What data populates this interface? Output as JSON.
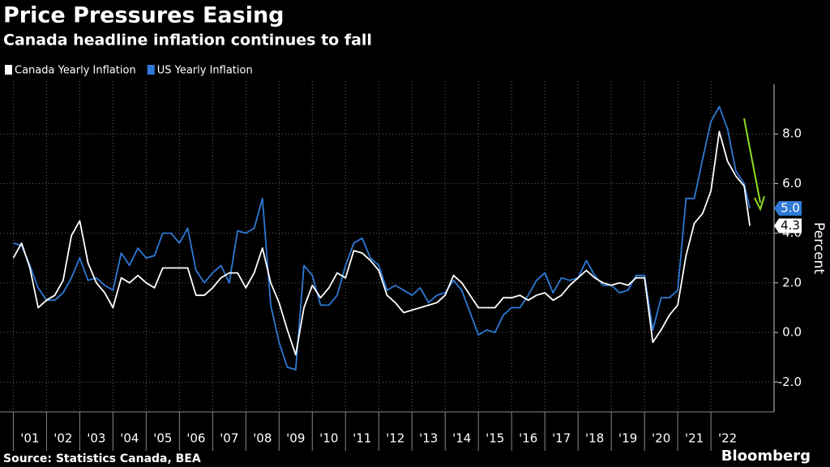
{
  "chart_data": {
    "type": "line",
    "title": "Price Pressures Easing",
    "subtitle": "Canada headline inflation continues to fall",
    "y_label": "Percent",
    "source": "Source: Statistics Canada, BEA",
    "brand": "Bloomberg",
    "x": [
      2001,
      2001.25,
      2001.5,
      2001.75,
      2002,
      2002.25,
      2002.5,
      2002.75,
      2003,
      2003.25,
      2003.5,
      2003.75,
      2004,
      2004.25,
      2004.5,
      2004.75,
      2005,
      2005.25,
      2005.5,
      2005.75,
      2006,
      2006.25,
      2006.5,
      2006.75,
      2007,
      2007.25,
      2007.5,
      2007.75,
      2008,
      2008.25,
      2008.5,
      2008.75,
      2009,
      2009.25,
      2009.5,
      2009.75,
      2010,
      2010.25,
      2010.5,
      2010.75,
      2011,
      2011.25,
      2011.5,
      2011.75,
      2012,
      2012.25,
      2012.5,
      2012.75,
      2013,
      2013.25,
      2013.5,
      2013.75,
      2014,
      2014.25,
      2014.5,
      2014.75,
      2015,
      2015.25,
      2015.5,
      2015.75,
      2016,
      2016.25,
      2016.5,
      2016.75,
      2017,
      2017.25,
      2017.5,
      2017.75,
      2018,
      2018.25,
      2018.5,
      2018.75,
      2019,
      2019.25,
      2019.5,
      2019.75,
      2020,
      2020.25,
      2020.5,
      2020.75,
      2021,
      2021.25,
      2021.5,
      2021.75,
      2022,
      2022.25,
      2022.5,
      2022.75,
      2023,
      2023.17
    ],
    "series": [
      {
        "name": "Canada Yearly Inflation",
        "color": "#ffffff",
        "values": [
          3.0,
          3.6,
          2.6,
          1.0,
          1.3,
          1.5,
          2.1,
          3.9,
          4.5,
          2.8,
          2.0,
          1.6,
          1.0,
          2.2,
          2.0,
          2.3,
          2.0,
          1.8,
          2.6,
          2.6,
          2.6,
          2.6,
          1.5,
          1.5,
          1.8,
          2.2,
          2.4,
          2.4,
          1.8,
          2.4,
          3.4,
          2.0,
          1.2,
          0.1,
          -0.9,
          1.0,
          1.9,
          1.4,
          1.8,
          2.4,
          2.2,
          3.3,
          3.2,
          2.9,
          2.5,
          1.5,
          1.2,
          0.8,
          0.9,
          1.0,
          1.1,
          1.2,
          1.5,
          2.3,
          2.0,
          1.5,
          1.0,
          1.0,
          1.0,
          1.4,
          1.4,
          1.5,
          1.3,
          1.5,
          1.6,
          1.3,
          1.5,
          1.9,
          2.2,
          2.5,
          2.2,
          2.0,
          1.9,
          2.0,
          1.9,
          2.2,
          2.2,
          -0.4,
          0.1,
          0.7,
          1.1,
          3.1,
          4.4,
          4.8,
          5.7,
          8.1,
          6.9,
          6.3,
          5.9,
          4.3
        ],
        "value_labels": [
          null,
          null,
          null,
          null,
          null,
          null,
          null,
          null,
          null,
          null,
          null,
          null,
          null,
          null,
          null,
          null,
          null,
          null,
          null,
          null,
          null,
          null,
          null,
          null,
          null,
          null,
          null,
          null,
          null,
          null,
          null,
          null,
          null,
          null,
          null,
          null,
          null,
          null,
          null,
          null,
          null,
          null,
          null,
          null,
          null,
          null,
          null,
          null,
          null,
          null,
          null,
          null,
          null,
          null,
          null,
          null,
          null,
          null,
          null,
          null,
          null,
          null,
          null,
          null,
          null,
          null,
          null,
          null,
          null,
          null,
          null,
          null,
          null,
          null,
          null,
          null,
          null,
          null,
          null,
          null,
          null,
          null,
          null,
          null,
          null,
          null,
          null,
          null,
          null,
          "4.3"
        ]
      },
      {
        "name": "US Yearly Inflation",
        "color": "#2e7ad6",
        "values": [
          3.6,
          3.5,
          2.7,
          1.8,
          1.3,
          1.3,
          1.6,
          2.2,
          3.0,
          2.1,
          2.2,
          1.9,
          1.7,
          3.2,
          2.7,
          3.4,
          3.0,
          3.1,
          4.0,
          4.0,
          3.6,
          4.2,
          2.5,
          2.0,
          2.4,
          2.7,
          2.0,
          4.1,
          4.0,
          4.2,
          5.4,
          1.1,
          -0.4,
          -1.4,
          -1.5,
          2.7,
          2.3,
          1.1,
          1.1,
          1.5,
          2.7,
          3.6,
          3.8,
          3.0,
          2.7,
          1.7,
          1.9,
          1.7,
          1.5,
          1.8,
          1.2,
          1.5,
          1.6,
          2.1,
          1.7,
          0.8,
          -0.1,
          0.1,
          0.0,
          0.7,
          1.0,
          1.0,
          1.5,
          2.1,
          2.4,
          1.6,
          2.2,
          2.1,
          2.2,
          2.9,
          2.3,
          1.9,
          1.9,
          1.6,
          1.7,
          2.3,
          2.3,
          0.1,
          1.4,
          1.4,
          1.7,
          5.4,
          5.4,
          7.0,
          8.5,
          9.1,
          8.2,
          6.5,
          6.0,
          5.0
        ],
        "value_labels": [
          null,
          null,
          null,
          null,
          null,
          null,
          null,
          null,
          null,
          null,
          null,
          null,
          null,
          null,
          null,
          null,
          null,
          null,
          null,
          null,
          null,
          null,
          null,
          null,
          null,
          null,
          null,
          null,
          null,
          null,
          null,
          null,
          null,
          null,
          null,
          null,
          null,
          null,
          null,
          null,
          null,
          null,
          null,
          null,
          null,
          null,
          null,
          null,
          null,
          null,
          null,
          null,
          null,
          null,
          null,
          null,
          null,
          null,
          null,
          null,
          null,
          null,
          null,
          null,
          null,
          null,
          null,
          null,
          null,
          null,
          null,
          null,
          null,
          null,
          null,
          null,
          null,
          null,
          null,
          null,
          null,
          null,
          null,
          null,
          null,
          null,
          null,
          null,
          null,
          "5.0"
        ]
      }
    ],
    "xlim": [
      2000.6,
      2023.9
    ],
    "xticks": [
      {
        "value": 2001,
        "label": "'01"
      },
      {
        "value": 2002,
        "label": "'02"
      },
      {
        "value": 2003,
        "label": "'03"
      },
      {
        "value": 2004,
        "label": "'04"
      },
      {
        "value": 2005,
        "label": "'05"
      },
      {
        "value": 2006,
        "label": "'06"
      },
      {
        "value": 2007,
        "label": "'07"
      },
      {
        "value": 2008,
        "label": "'08"
      },
      {
        "value": 2009,
        "label": "'09"
      },
      {
        "value": 2010,
        "label": "'10"
      },
      {
        "value": 2011,
        "label": "'11"
      },
      {
        "value": 2012,
        "label": "'12"
      },
      {
        "value": 2013,
        "label": "'13"
      },
      {
        "value": 2014,
        "label": "'14"
      },
      {
        "value": 2015,
        "label": "'15"
      },
      {
        "value": 2016,
        "label": "'16"
      },
      {
        "value": 2017,
        "label": "'17"
      },
      {
        "value": 2018,
        "label": "'18"
      },
      {
        "value": 2019,
        "label": "'19"
      },
      {
        "value": 2020,
        "label": "'20"
      },
      {
        "value": 2021,
        "label": "'21"
      },
      {
        "value": 2022,
        "label": "'22"
      }
    ],
    "ylim": [
      -3.2,
      10
    ],
    "yticks": [
      {
        "value": -2,
        "label": "-2.0"
      },
      {
        "value": 0,
        "label": "0.0"
      },
      {
        "value": 2,
        "label": "2.0"
      },
      {
        "value": 4,
        "label": "4.0"
      },
      {
        "value": 6,
        "label": "6.0"
      },
      {
        "value": 8,
        "label": "8.0"
      }
    ],
    "grid": true
  }
}
